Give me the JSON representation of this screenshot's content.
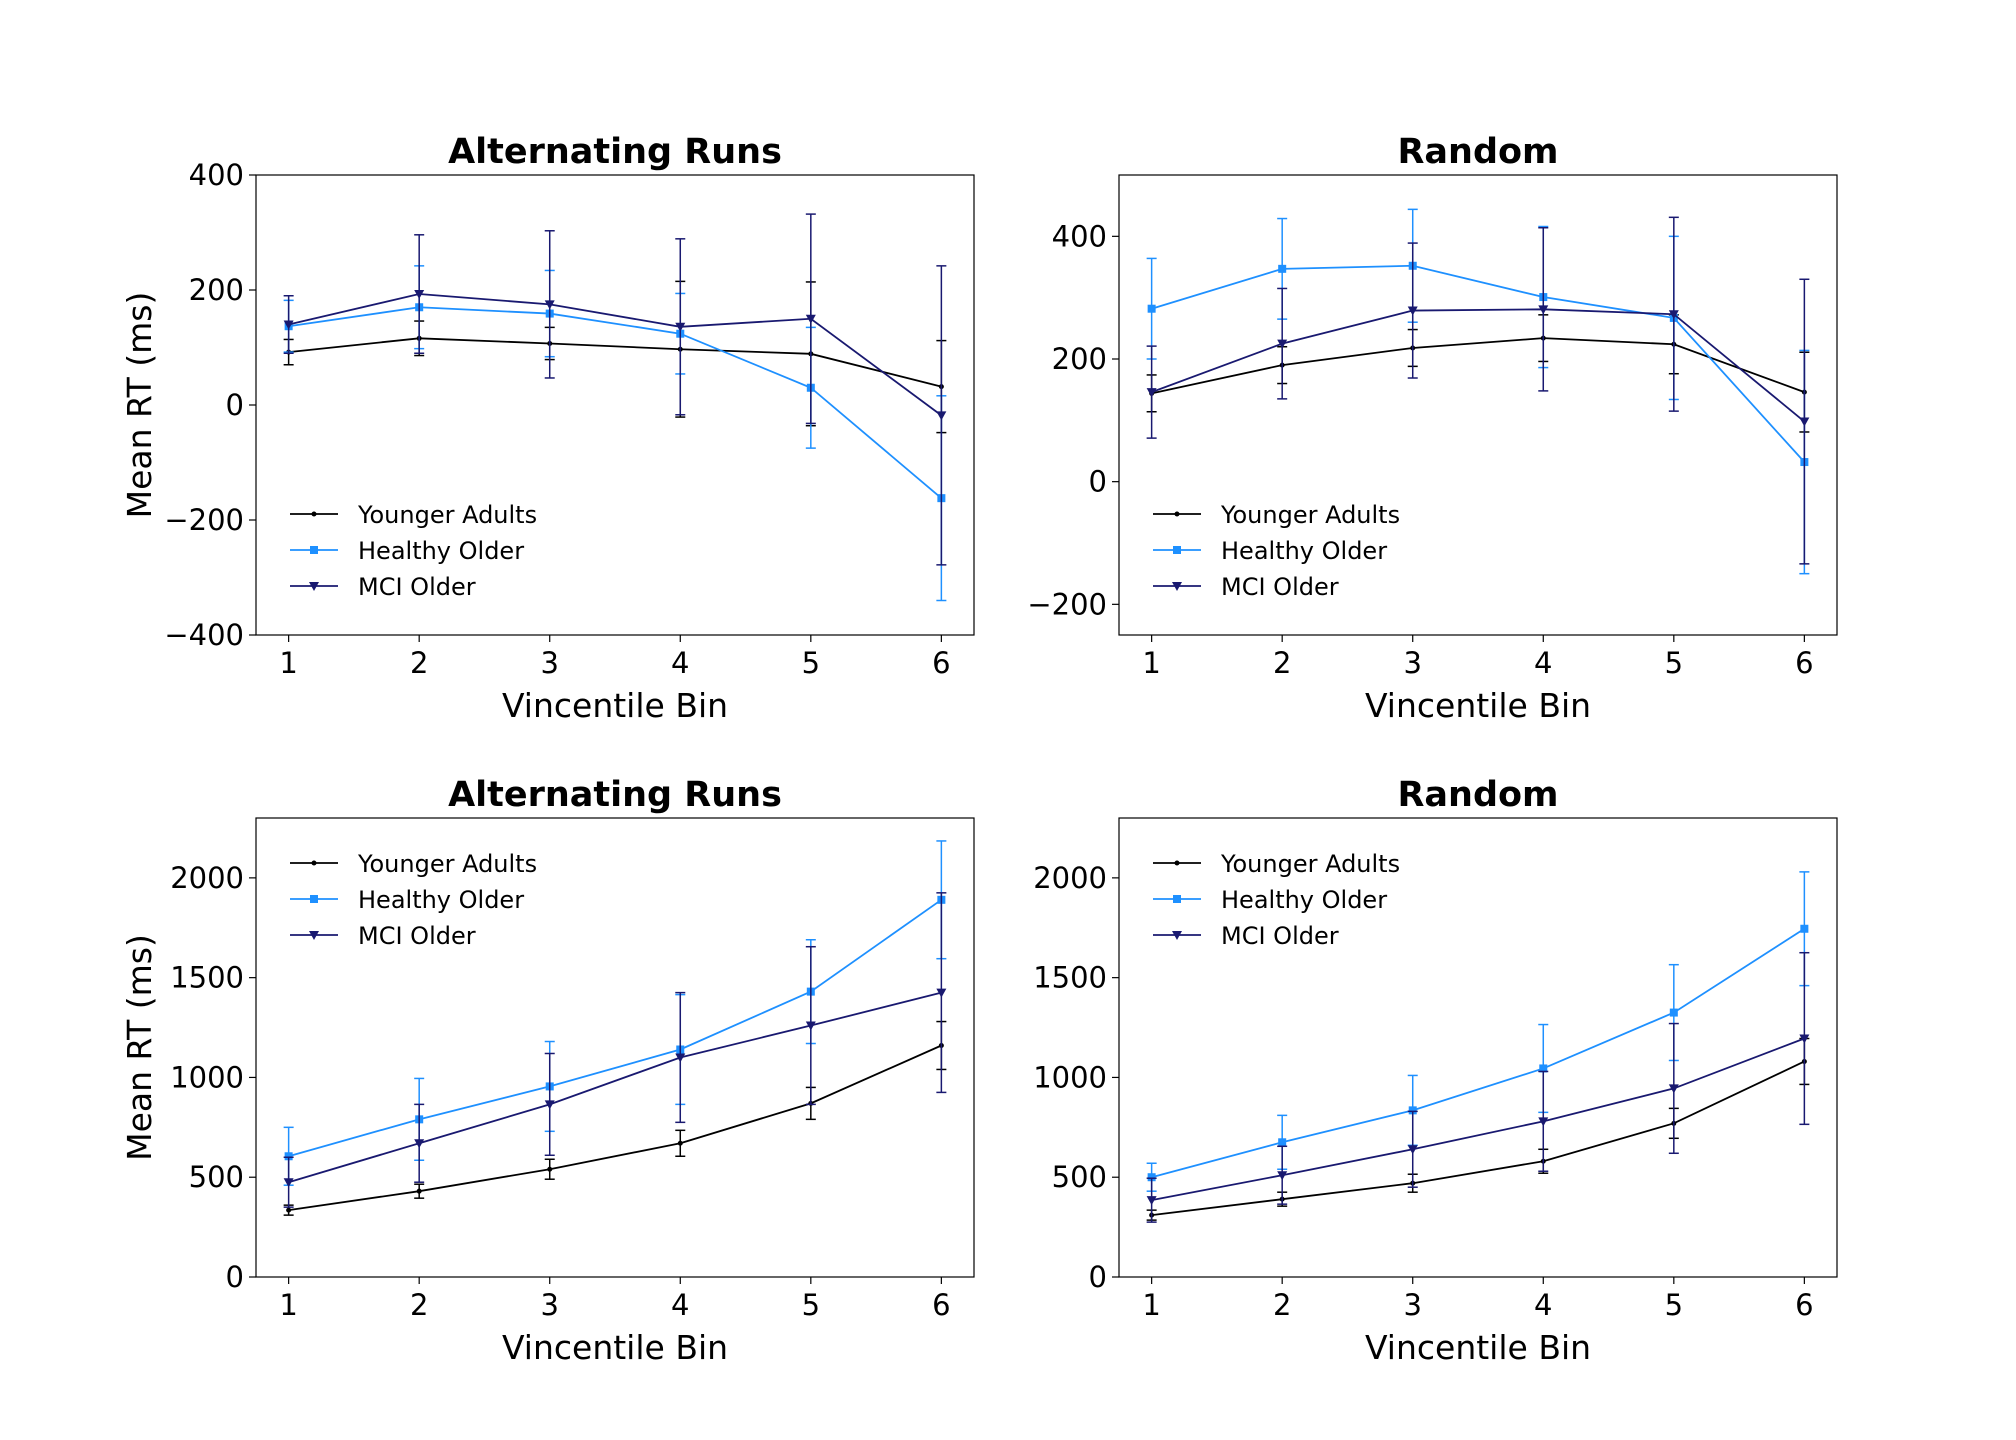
{
  "colors": {
    "Younger Adults": "#000000",
    "Healthy Older": "#1e90ff",
    "MCI Older": "#191970"
  },
  "chart_data": [
    {
      "type": "line",
      "title": "Alternating Runs",
      "xlabel": "Vincentile Bin",
      "ylabel": "Mean RT (ms)",
      "x": [
        1,
        2,
        3,
        4,
        5,
        6
      ],
      "xlim": [
        0.75,
        6.25
      ],
      "ylim": [
        -400,
        400
      ],
      "yticks": [
        -400,
        -200,
        0,
        200,
        400
      ],
      "legend": "lower-left",
      "series": [
        {
          "name": "Younger Adults",
          "marker": "dot",
          "values": [
            92,
            116,
            107,
            97,
            89,
            32
          ],
          "err": [
            22,
            30,
            28,
            118,
            125,
            80
          ]
        },
        {
          "name": "Healthy Older",
          "marker": "square",
          "values": [
            137,
            170,
            159,
            124,
            30,
            -162
          ],
          "err": [
            45,
            72,
            75,
            70,
            105,
            178
          ]
        },
        {
          "name": "MCI Older",
          "marker": "triangle",
          "values": [
            140,
            193,
            175,
            136,
            150,
            -18
          ],
          "err": [
            50,
            103,
            128,
            153,
            182,
            260
          ]
        }
      ]
    },
    {
      "type": "line",
      "title": "Random",
      "xlabel": "Vincentile Bin",
      "ylabel": "",
      "x": [
        1,
        2,
        3,
        4,
        5,
        6
      ],
      "xlim": [
        0.75,
        6.25
      ],
      "ylim": [
        -250,
        500
      ],
      "yticks": [
        -200,
        0,
        200,
        400
      ],
      "legend": "lower-left",
      "series": [
        {
          "name": "Younger Adults",
          "marker": "dot",
          "values": [
            144,
            190,
            218,
            234,
            224,
            146
          ],
          "err": [
            30,
            30,
            30,
            38,
            48,
            65
          ]
        },
        {
          "name": "Healthy Older",
          "marker": "square",
          "values": [
            282,
            347,
            352,
            301,
            267,
            32
          ],
          "err": [
            82,
            82,
            92,
            115,
            133,
            182
          ]
        },
        {
          "name": "MCI Older",
          "marker": "triangle",
          "values": [
            146,
            225,
            279,
            281,
            273,
            98
          ],
          "err": [
            75,
            90,
            110,
            133,
            158,
            232
          ]
        }
      ]
    },
    {
      "type": "line",
      "title": "Alternating Runs",
      "xlabel": "Vincentile Bin",
      "ylabel": "Mean RT (ms)",
      "x": [
        1,
        2,
        3,
        4,
        5,
        6
      ],
      "xlim": [
        0.75,
        6.25
      ],
      "ylim": [
        0,
        2300
      ],
      "yticks": [
        0,
        500,
        1000,
        1500,
        2000
      ],
      "legend": "upper-left",
      "series": [
        {
          "name": "Younger Adults",
          "marker": "dot",
          "values": [
            335,
            430,
            540,
            670,
            870,
            1160
          ],
          "err": [
            25,
            35,
            50,
            65,
            80,
            120
          ]
        },
        {
          "name": "Healthy Older",
          "marker": "square",
          "values": [
            605,
            790,
            955,
            1140,
            1430,
            1890
          ],
          "err": [
            145,
            205,
            225,
            275,
            260,
            295
          ]
        },
        {
          "name": "MCI Older",
          "marker": "triangle",
          "values": [
            475,
            670,
            865,
            1100,
            1260,
            1425
          ],
          "err": [
            125,
            195,
            255,
            325,
            395,
            500
          ]
        }
      ]
    },
    {
      "type": "line",
      "title": "Random",
      "xlabel": "Vincentile Bin",
      "ylabel": "",
      "x": [
        1,
        2,
        3,
        4,
        5,
        6
      ],
      "xlim": [
        0.75,
        6.25
      ],
      "ylim": [
        0,
        2300
      ],
      "yticks": [
        0,
        500,
        1000,
        1500,
        2000
      ],
      "legend": "upper-left",
      "series": [
        {
          "name": "Younger Adults",
          "marker": "dot",
          "values": [
            310,
            390,
            470,
            580,
            770,
            1080
          ],
          "err": [
            25,
            35,
            45,
            60,
            75,
            115
          ]
        },
        {
          "name": "Healthy Older",
          "marker": "square",
          "values": [
            500,
            675,
            835,
            1045,
            1325,
            1745
          ],
          "err": [
            70,
            135,
            175,
            220,
            240,
            285
          ]
        },
        {
          "name": "MCI Older",
          "marker": "triangle",
          "values": [
            385,
            510,
            640,
            780,
            945,
            1195
          ],
          "err": [
            110,
            145,
            190,
            250,
            325,
            430
          ]
        }
      ]
    }
  ]
}
